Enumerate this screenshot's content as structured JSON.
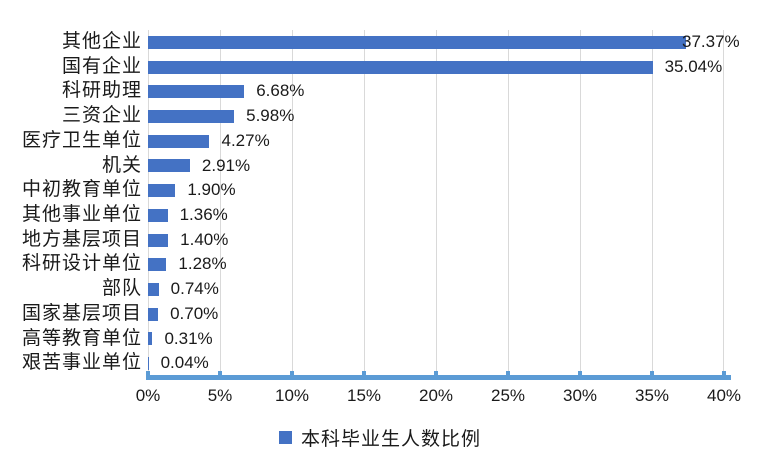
{
  "chart_data": {
    "type": "bar",
    "orientation": "horizontal",
    "title": "",
    "xlabel": "",
    "ylabel": "",
    "categories": [
      "其他企业",
      "国有企业",
      "科研助理",
      "三资企业",
      "医疗卫生单位",
      "机关",
      "中初教育单位",
      "其他事业单位",
      "地方基层项目",
      "科研设计单位",
      "部队",
      "国家基层项目",
      "高等教育单位",
      "艰苦事业单位"
    ],
    "values": [
      37.37,
      35.04,
      6.68,
      5.98,
      4.27,
      2.91,
      1.9,
      1.36,
      1.4,
      1.28,
      0.74,
      0.7,
      0.31,
      0.04
    ],
    "value_labels": [
      "37.37%",
      "35.04%",
      "6.68%",
      "5.98%",
      "4.27%",
      "2.91%",
      "1.90%",
      "1.36%",
      "1.40%",
      "1.28%",
      "0.74%",
      "0.70%",
      "0.31%",
      "0.04%"
    ],
    "xlim": [
      0,
      40
    ],
    "x_ticks": [
      {
        "label": "0%",
        "value": 0
      },
      {
        "label": "5%",
        "value": 5
      },
      {
        "label": "10%",
        "value": 10
      },
      {
        "label": "15%",
        "value": 15
      },
      {
        "label": "20%",
        "value": 20
      },
      {
        "label": "25%",
        "value": 25
      },
      {
        "label": "30%",
        "value": 30
      },
      {
        "label": "35%",
        "value": 35
      },
      {
        "label": "40%",
        "value": 40
      }
    ],
    "grid": "vertical",
    "legend": {
      "position": "bottom-center",
      "label": "本科毕业生人数比例"
    },
    "colors": {
      "bar": "#4472C4",
      "axis_line": "#5B9BD5",
      "gridline": "#D9D9D9",
      "text": "#1A1A1A",
      "background": "#FFFFFF"
    }
  }
}
